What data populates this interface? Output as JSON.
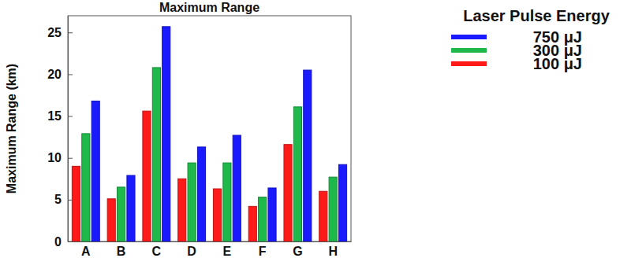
{
  "chart_data": {
    "type": "bar",
    "title": "Maximum Range",
    "y_label": "Maximum Range (km)",
    "legend_title": "Laser Pulse Energy",
    "categories": [
      "A",
      "B",
      "C",
      "D",
      "E",
      "F",
      "G",
      "H"
    ],
    "series": [
      {
        "name": "100 μJ",
        "color": "#ff1a1a",
        "values": [
          9.0,
          5.1,
          15.6,
          7.5,
          6.3,
          4.2,
          11.6,
          6.0
        ]
      },
      {
        "name": "300 μJ",
        "color": "#1fb84a",
        "values": [
          12.9,
          6.5,
          20.8,
          9.4,
          9.4,
          5.3,
          16.1,
          7.7
        ]
      },
      {
        "name": "750 μJ",
        "color": "#1a1aff",
        "values": [
          16.8,
          7.9,
          25.7,
          11.3,
          12.7,
          6.4,
          20.5,
          9.2
        ]
      }
    ],
    "ylim": [
      0,
      27
    ],
    "yticks": [
      0,
      5,
      10,
      15,
      20,
      25
    ],
    "grid": false,
    "legend": "right"
  }
}
